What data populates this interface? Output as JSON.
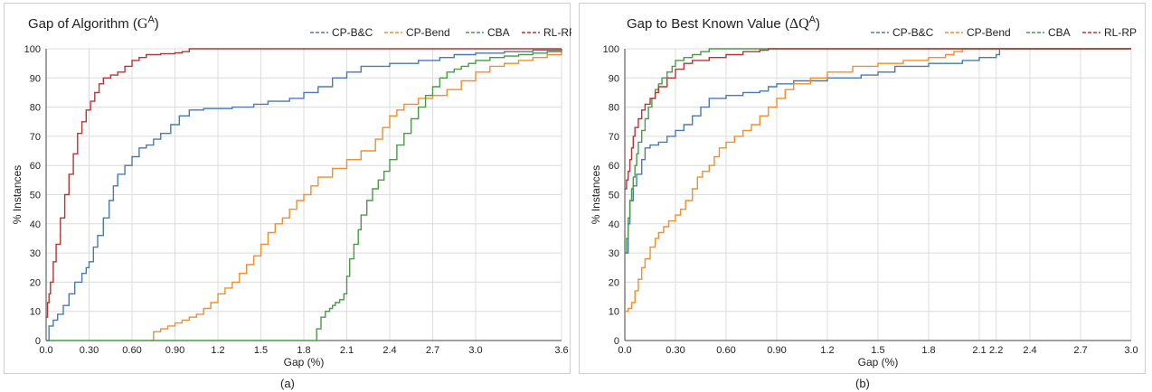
{
  "chart_data": [
    {
      "type": "line",
      "title_text": "Gap of Algorithm (",
      "title_math": "G",
      "title_sup": "A",
      "title_close": ")",
      "caption": "(a)",
      "xlabel": "Gap (%)",
      "ylabel": "% Instances",
      "xlim": [
        0,
        3.6
      ],
      "ylim": [
        0,
        100
      ],
      "xticks": [
        0.0,
        0.3,
        0.6,
        0.9,
        1.2,
        1.5,
        1.8,
        2.1,
        2.4,
        2.7,
        3.0,
        3.6
      ],
      "xtick_labels": [
        "0.0",
        "0.30",
        "0.60",
        "0.90",
        "1.2",
        "1.5",
        "1.8",
        "2.1",
        "2.4",
        "2.7",
        "3.0",
        "3.6"
      ],
      "yticks": [
        0,
        10,
        20,
        30,
        40,
        50,
        60,
        70,
        80,
        90,
        100
      ],
      "grid": true,
      "legend_position": "top-right",
      "series": [
        {
          "name": "CP-B&C",
          "color": "#4a7ab0",
          "x": [
            0,
            0.02,
            0.05,
            0.08,
            0.12,
            0.16,
            0.2,
            0.25,
            0.28,
            0.3,
            0.33,
            0.36,
            0.4,
            0.44,
            0.47,
            0.5,
            0.55,
            0.6,
            0.65,
            0.7,
            0.75,
            0.8,
            0.87,
            0.93,
            1.0,
            1.1,
            1.3,
            1.45,
            1.55,
            1.7,
            1.8,
            1.9,
            2.0,
            2.1,
            2.2,
            2.4,
            2.6,
            2.75,
            2.85,
            3.0,
            3.2,
            3.4,
            3.6
          ],
          "y": [
            0,
            5,
            7,
            9,
            12,
            16,
            20,
            23,
            25,
            27,
            32,
            36,
            42,
            48,
            53,
            57,
            60,
            63,
            66,
            67,
            69,
            71,
            74,
            77,
            79,
            79.5,
            80,
            81,
            82,
            83,
            85,
            87,
            90,
            92,
            94,
            95,
            96,
            97,
            98,
            98.5,
            99,
            99.5,
            100
          ]
        },
        {
          "name": "CP-Bend",
          "color": "#f28e2b",
          "x": [
            0.73,
            0.75,
            0.8,
            0.85,
            0.9,
            0.95,
            1.0,
            1.05,
            1.1,
            1.15,
            1.2,
            1.25,
            1.3,
            1.35,
            1.4,
            1.45,
            1.5,
            1.55,
            1.6,
            1.65,
            1.7,
            1.75,
            1.8,
            1.85,
            1.9,
            2.0,
            2.1,
            2.2,
            2.3,
            2.35,
            2.4,
            2.45,
            2.5,
            2.6,
            2.7,
            2.8,
            2.9,
            3.0,
            3.1,
            3.2,
            3.3,
            3.4,
            3.5,
            3.6
          ],
          "y": [
            0,
            3,
            4,
            5,
            6,
            7,
            8,
            9,
            11,
            13,
            16,
            18,
            20,
            23,
            26,
            29,
            33,
            37,
            40,
            42,
            45,
            48,
            50,
            53,
            56,
            59,
            62,
            65,
            69,
            73,
            77,
            79,
            81,
            83,
            84,
            86,
            89,
            92,
            94,
            95,
            96,
            97,
            98,
            99
          ]
        },
        {
          "name": "CBA",
          "color": "#4a9a48",
          "x": [
            0,
            1.87,
            1.89,
            1.92,
            1.95,
            1.98,
            2.0,
            2.02,
            2.05,
            2.08,
            2.1,
            2.12,
            2.15,
            2.18,
            2.2,
            2.24,
            2.28,
            2.32,
            2.36,
            2.4,
            2.45,
            2.5,
            2.55,
            2.6,
            2.65,
            2.7,
            2.75,
            2.8,
            2.85,
            2.9,
            2.95,
            3.0,
            3.1,
            3.2,
            3.3,
            3.4,
            3.5,
            3.6
          ],
          "y": [
            0,
            0,
            4,
            8,
            10,
            11,
            12,
            13,
            14,
            16,
            22,
            28,
            33,
            38,
            43,
            48,
            52,
            55,
            58,
            62,
            67,
            71,
            76,
            80,
            84,
            87,
            90,
            92,
            93,
            94,
            95,
            96,
            97,
            97.5,
            98,
            98.5,
            99,
            100
          ]
        },
        {
          "name": "RL-RP",
          "color": "#b73535",
          "x": [
            0,
            0.01,
            0.02,
            0.03,
            0.05,
            0.07,
            0.1,
            0.13,
            0.16,
            0.19,
            0.22,
            0.25,
            0.28,
            0.31,
            0.34,
            0.37,
            0.4,
            0.45,
            0.5,
            0.55,
            0.6,
            0.65,
            0.7,
            0.8,
            0.9,
            0.95,
            1.0,
            1.5,
            2.0,
            3.0,
            3.6
          ],
          "y": [
            8,
            13,
            16,
            20,
            27,
            33,
            42,
            50,
            57,
            64,
            71,
            75,
            79,
            82,
            85,
            88,
            90,
            91,
            92,
            94,
            96,
            97,
            98,
            98.3,
            98.6,
            99,
            100,
            100,
            100,
            100,
            100
          ]
        }
      ]
    },
    {
      "type": "line",
      "title_text": "Gap to Best Known Value (",
      "title_math": "ΔQ",
      "title_sup": "A",
      "title_close": ")",
      "caption": "(b)",
      "xlabel": "Gap (%)",
      "ylabel": "% Instances",
      "xlim": [
        0,
        3.0
      ],
      "ylim": [
        0,
        100
      ],
      "xticks": [
        0.0,
        0.3,
        0.6,
        0.9,
        1.2,
        1.5,
        1.8,
        2.1,
        2.2,
        2.4,
        2.7,
        3.0
      ],
      "xtick_labels": [
        "0.0",
        "0.30",
        "0.60",
        "0.90",
        "1.2",
        "1.5",
        "1.8",
        "2.1",
        "2.2",
        "2.4",
        "2.7",
        "3.0"
      ],
      "yticks": [
        0,
        10,
        20,
        30,
        40,
        50,
        60,
        70,
        80,
        90,
        100
      ],
      "grid": true,
      "legend_position": "top-right",
      "series": [
        {
          "name": "CP-B&C",
          "color": "#4a7ab0",
          "x": [
            0,
            0.02,
            0.03,
            0.05,
            0.07,
            0.1,
            0.12,
            0.15,
            0.2,
            0.25,
            0.3,
            0.35,
            0.4,
            0.45,
            0.5,
            0.6,
            0.7,
            0.8,
            0.85,
            0.9,
            1.0,
            1.2,
            1.4,
            1.5,
            1.6,
            1.8,
            2.0,
            2.1,
            2.2,
            2.22,
            3.0
          ],
          "y": [
            30,
            40,
            48,
            53,
            57,
            62,
            66,
            67,
            68,
            70,
            72,
            74,
            77,
            80,
            83,
            84,
            85,
            85.5,
            87,
            88,
            89,
            90,
            91,
            92,
            94,
            95,
            96,
            97,
            98,
            100,
            100
          ]
        },
        {
          "name": "CP-Bend",
          "color": "#f28e2b",
          "x": [
            0,
            0.02,
            0.04,
            0.06,
            0.08,
            0.1,
            0.12,
            0.15,
            0.18,
            0.2,
            0.23,
            0.26,
            0.3,
            0.33,
            0.36,
            0.4,
            0.43,
            0.46,
            0.5,
            0.53,
            0.56,
            0.6,
            0.65,
            0.7,
            0.75,
            0.8,
            0.85,
            0.9,
            0.95,
            1.0,
            1.1,
            1.2,
            1.35,
            1.5,
            1.65,
            1.8,
            1.9,
            1.95,
            2.0,
            3.0
          ],
          "y": [
            10,
            11,
            13,
            17,
            21,
            25,
            28,
            32,
            35,
            37,
            39,
            41,
            43,
            45,
            48,
            52,
            56,
            58,
            60,
            63,
            66,
            68,
            70,
            72,
            74,
            77,
            80,
            83,
            86,
            88,
            90,
            92,
            94,
            95,
            96,
            97,
            98,
            99,
            100,
            100
          ]
        },
        {
          "name": "CBA",
          "color": "#4a9a48",
          "x": [
            0,
            0.01,
            0.02,
            0.03,
            0.04,
            0.05,
            0.06,
            0.07,
            0.08,
            0.1,
            0.12,
            0.14,
            0.16,
            0.18,
            0.2,
            0.22,
            0.25,
            0.28,
            0.3,
            0.35,
            0.4,
            0.45,
            0.5,
            0.55,
            3.0
          ],
          "y": [
            30,
            35,
            42,
            48,
            52,
            56,
            60,
            64,
            68,
            72,
            76,
            80,
            83,
            86,
            88,
            90,
            92,
            94,
            96,
            97,
            98,
            99,
            100,
            100,
            100
          ]
        },
        {
          "name": "RL-RP",
          "color": "#b73535",
          "x": [
            0,
            0.01,
            0.02,
            0.03,
            0.04,
            0.05,
            0.06,
            0.08,
            0.1,
            0.12,
            0.15,
            0.18,
            0.2,
            0.25,
            0.3,
            0.35,
            0.4,
            0.5,
            0.6,
            0.7,
            0.8,
            0.85,
            3.0
          ],
          "y": [
            52,
            55,
            58,
            62,
            66,
            70,
            73,
            76,
            79,
            81,
            83,
            85,
            87,
            90,
            93,
            95,
            96,
            97,
            98,
            99,
            99.5,
            100,
            100
          ]
        }
      ]
    }
  ]
}
